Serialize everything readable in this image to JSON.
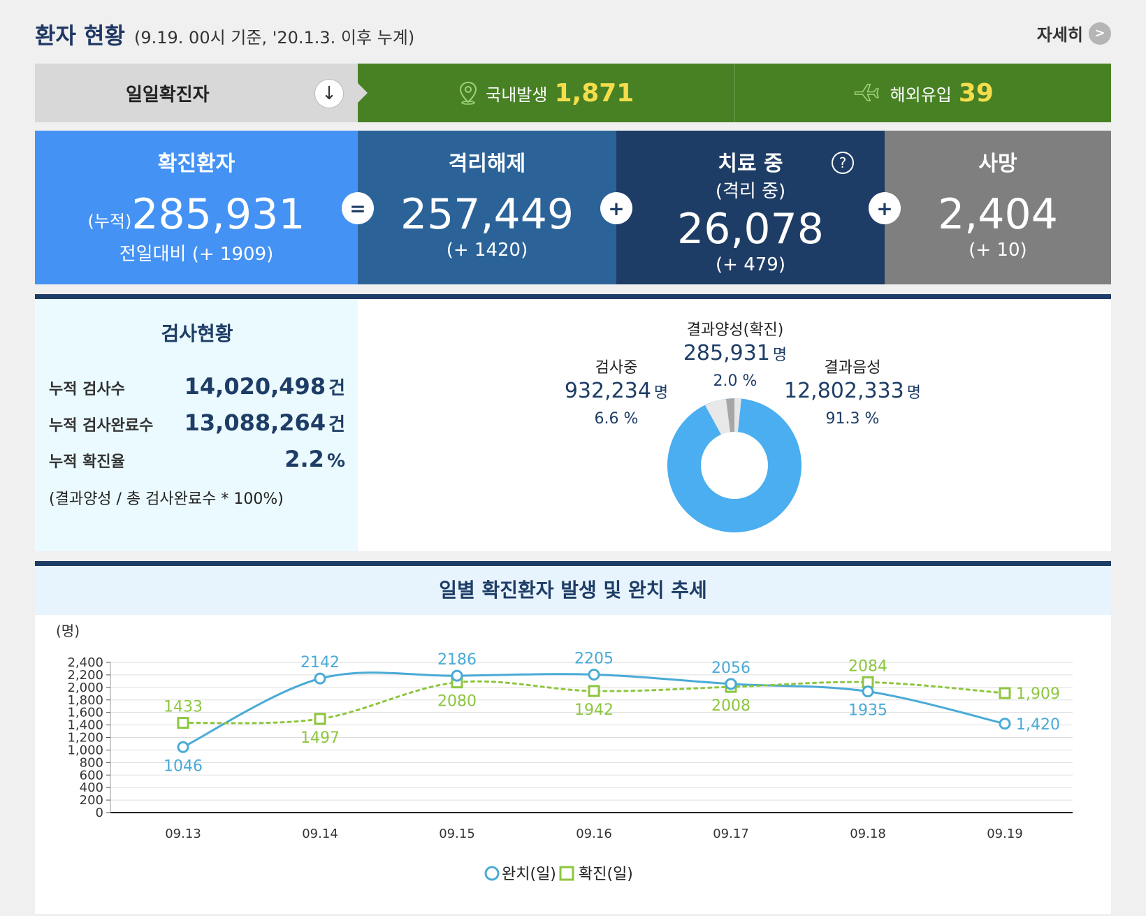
{
  "header": {
    "title": "환자 현황",
    "subtitle": "(9.19. 00시 기준, '20.1.3. 이후 누계)",
    "more_label": "자세히",
    "more_icon": ">"
  },
  "daily": {
    "label": "일일확진자",
    "arrow_icon": "↓",
    "domestic_label": "국내발생",
    "domestic_value": "1,871",
    "overseas_label": "해외유입",
    "overseas_value": "39"
  },
  "stats": {
    "confirmed": {
      "label": "확진환자",
      "prefix": "(누적)",
      "value": "285,931",
      "change": "전일대비 (+ 1909)"
    },
    "released": {
      "label": "격리해제",
      "value": "257,449",
      "change": "(+ 1420)"
    },
    "treatment": {
      "label": "치료 중",
      "sublabel": "(격리 중)",
      "value": "26,078",
      "change": "(+ 479)",
      "help_icon": "?"
    },
    "deaths": {
      "label": "사망",
      "value": "2,404",
      "change": "(+ 10)"
    },
    "op_equals": "=",
    "op_plus": "+"
  },
  "tests": {
    "title": "검사현황",
    "rows": [
      {
        "label": "누적 검사수",
        "value": "14,020,498",
        "unit": "건"
      },
      {
        "label": "누적 검사완료수",
        "value": "13,088,264",
        "unit": "건"
      },
      {
        "label": "누적 확진율",
        "value": "2.2",
        "unit": "%"
      }
    ],
    "note": "(결과양성 / 총 검사완료수 * 100%)",
    "pie": {
      "positive": {
        "label": "결과양성(확진)",
        "value": "285,931",
        "unit": "명",
        "pct": "2.0 %"
      },
      "testing": {
        "label": "검사중",
        "value": "932,234",
        "unit": "명",
        "pct": "6.6 %"
      },
      "negative": {
        "label": "결과음성",
        "value": "12,802,333",
        "unit": "명",
        "pct": "91.3 %"
      }
    }
  },
  "chart_data": {
    "type": "line",
    "title": "일별 확진환자 발생 및 완치 추세",
    "ylabel": "(명)",
    "ylim": [
      0,
      2400
    ],
    "yticks": [
      "0",
      "200",
      "400",
      "600",
      "800",
      "1,000",
      "1,200",
      "1,400",
      "1,600",
      "1,800",
      "2,000",
      "2,200",
      "2,400"
    ],
    "categories": [
      "09.13",
      "09.14",
      "09.15",
      "09.16",
      "09.17",
      "09.18",
      "09.19"
    ],
    "series": [
      {
        "name": "완치(일)",
        "color": "#4aaad6",
        "values": [
          1046,
          2142,
          2186,
          2205,
          2056,
          1935,
          1420
        ],
        "labels": [
          "1046",
          "2142",
          "2186",
          "2205",
          "2056",
          "1935",
          "1,420"
        ]
      },
      {
        "name": "확진(일)",
        "color": "#8dc63f",
        "values": [
          1433,
          1497,
          2080,
          1942,
          2008,
          2084,
          1909
        ],
        "labels": [
          "1433",
          "1497",
          "2080",
          "1942",
          "2008",
          "2084",
          "1,909"
        ]
      }
    ]
  },
  "colors": {
    "confirmed_bg": "#4492f4",
    "released_bg": "#2b6399",
    "treatment_bg": "#1e3d66",
    "deaths_bg": "#7f7f7f",
    "daily_bg": "#478124",
    "daily_num": "#f6dd4c"
  }
}
